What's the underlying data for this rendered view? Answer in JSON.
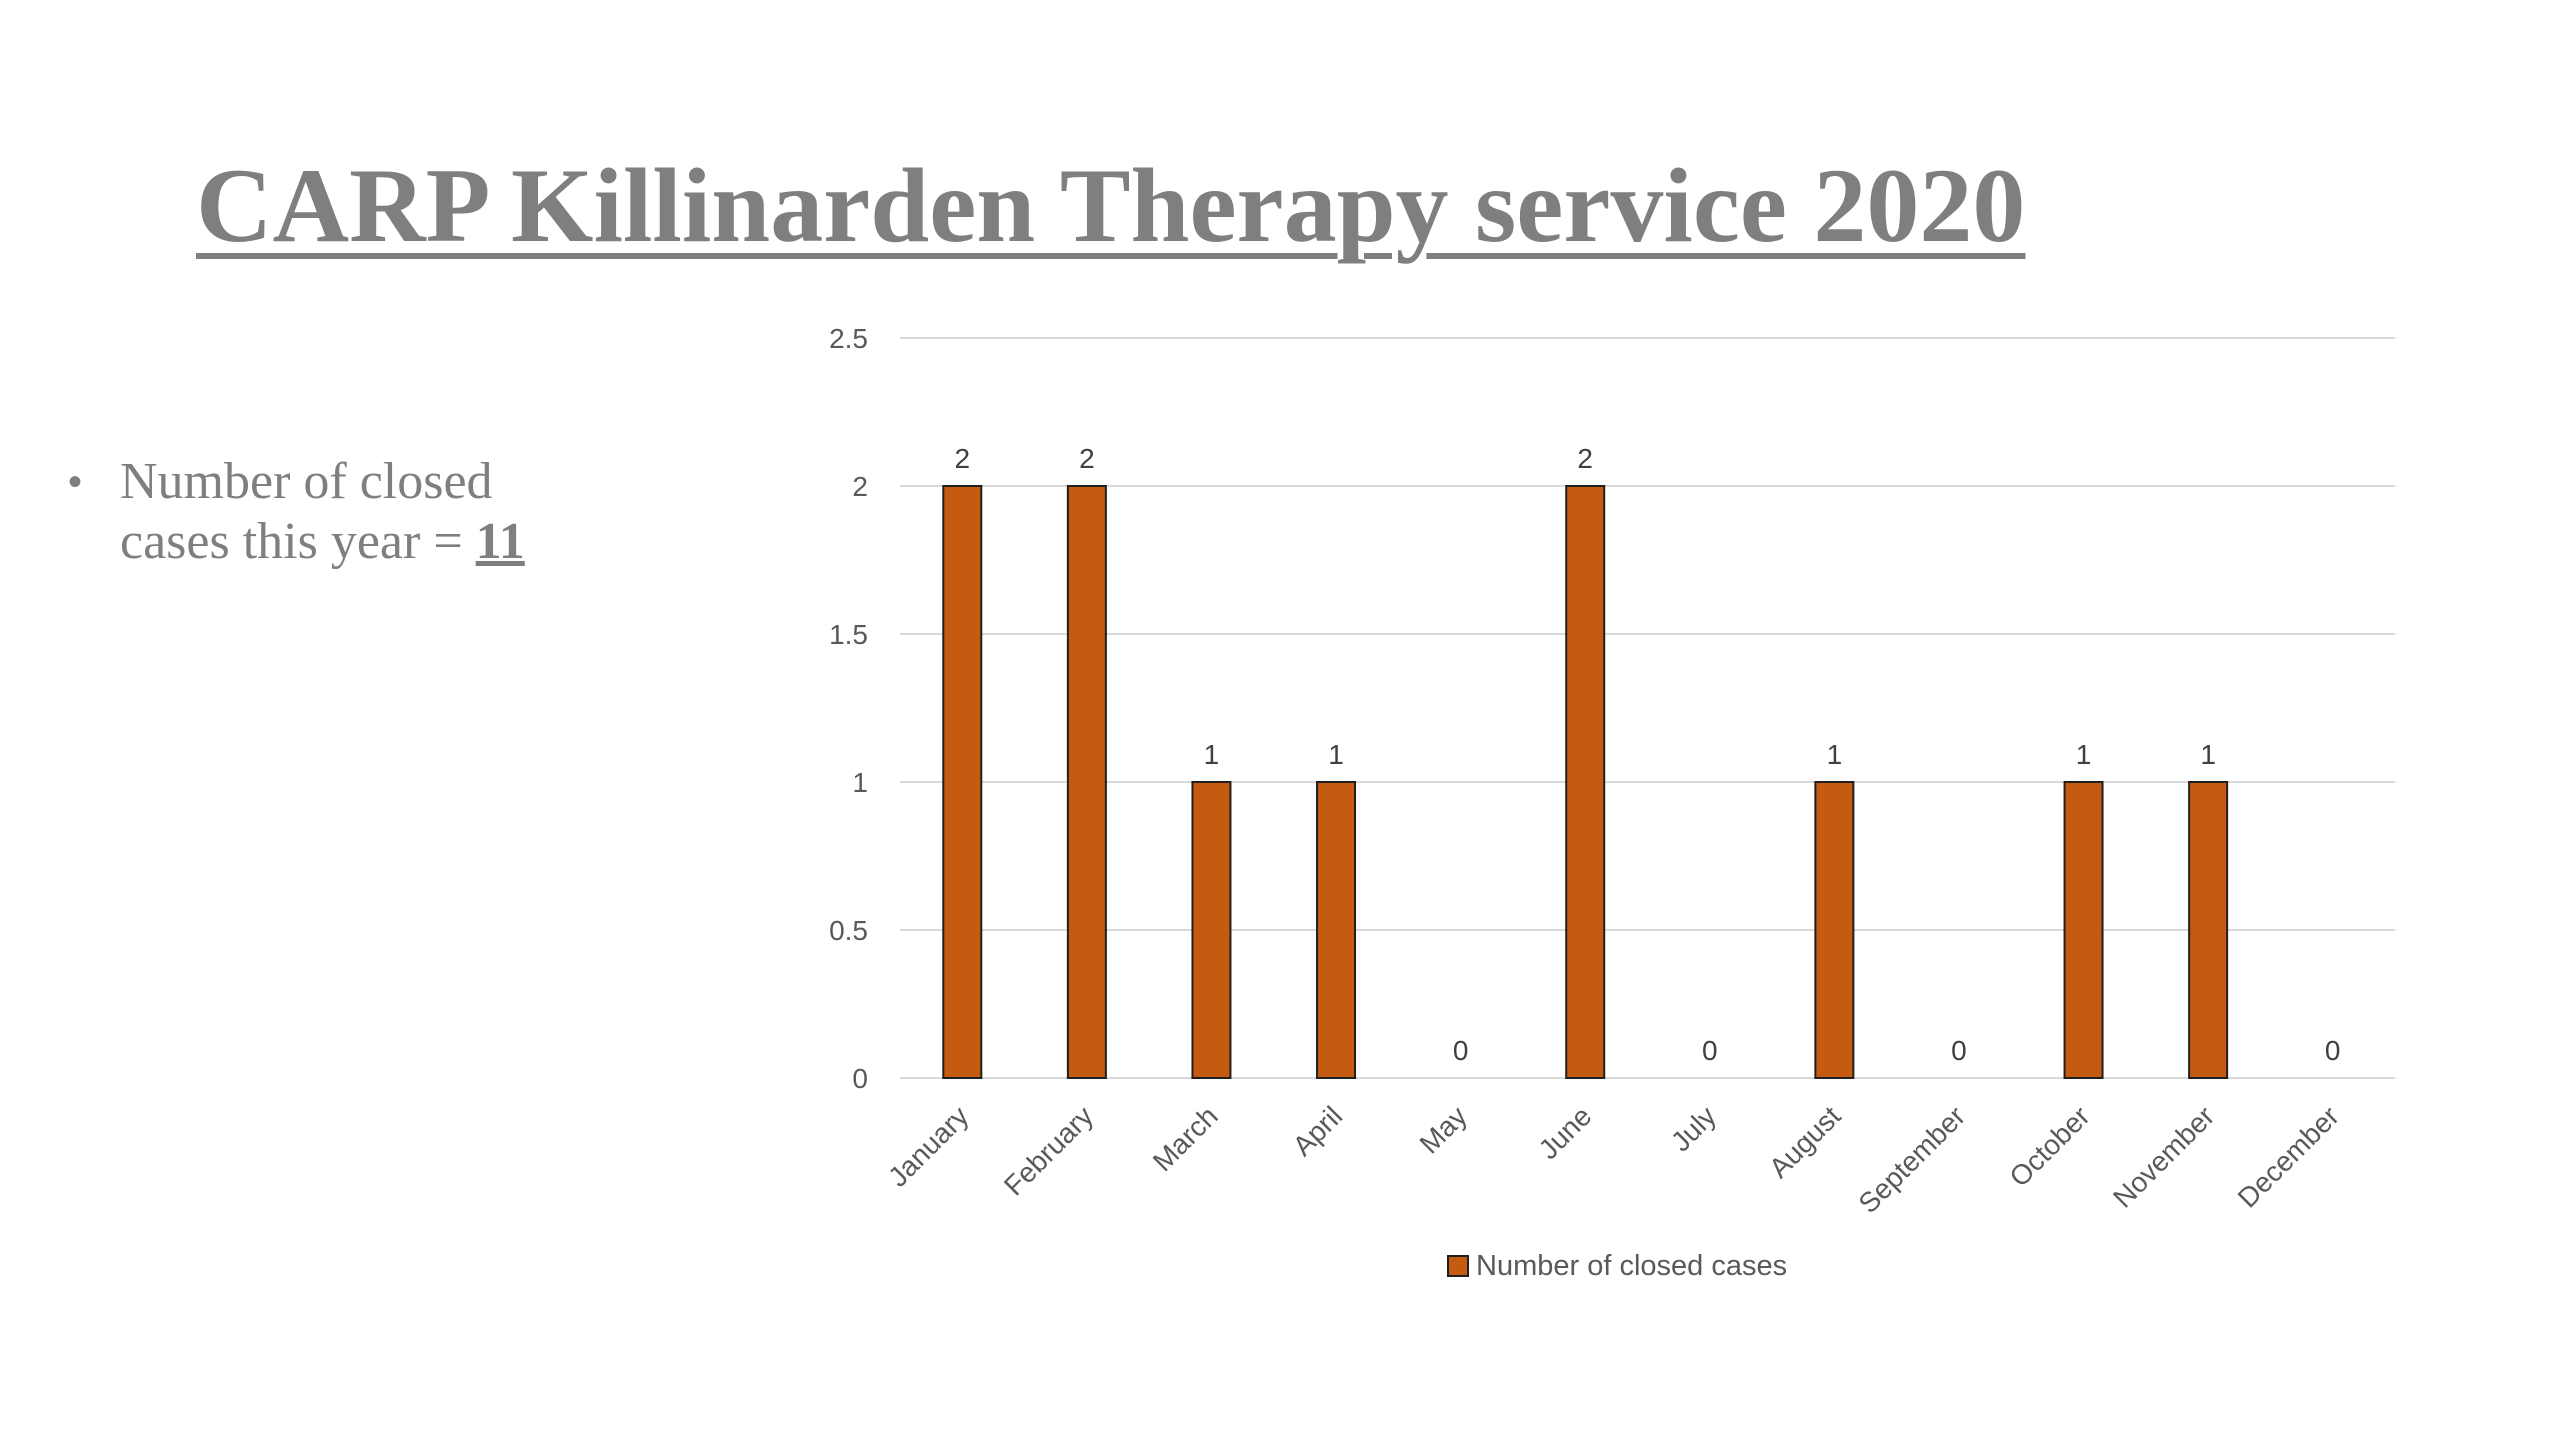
{
  "slide": {
    "title": "CARP Killinarden Therapy service 2020",
    "bullet": {
      "marker": "•",
      "line1": "Number of closed",
      "line2_prefix": "cases  this year = ",
      "line2_value": "11"
    }
  },
  "colors": {
    "title": "#7f7f7f",
    "bar_fill": "#c55a11",
    "bar_stroke": "#1f1f1f",
    "grid": "#d9d9d9",
    "axis_text": "#595959"
  },
  "chart_data": {
    "type": "bar",
    "categories": [
      "January",
      "February",
      "March",
      "April",
      "May",
      "June",
      "July",
      "August",
      "September",
      "October",
      "November",
      "December"
    ],
    "series": [
      {
        "name": "Number of closed cases",
        "values": [
          2,
          2,
          1,
          1,
          0,
          2,
          0,
          1,
          0,
          1,
          1,
          0
        ]
      }
    ],
    "yticks": [
      "0",
      "0.5",
      "1",
      "1.5",
      "2",
      "2.5"
    ],
    "ylim": [
      0,
      2.5
    ],
    "grid": true,
    "data_labels": true,
    "legend_position": "bottom"
  }
}
